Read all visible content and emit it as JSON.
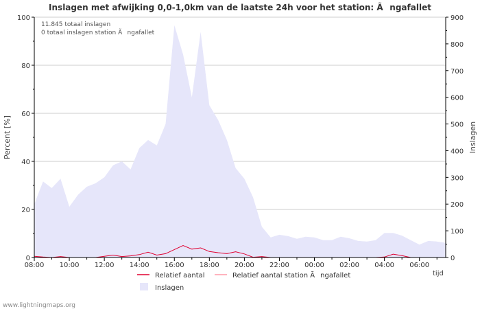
{
  "chart_data": {
    "type": "area",
    "title": "Inslagen met afwijking 0,0-1,0km van de laatste 24h voor het station: Ãngafallet",
    "info_lines": [
      "11.845 totaal inslagen",
      "0 totaal inslagen station Ãngafallet"
    ],
    "ylabel_left": "Percent   [%]",
    "ylabel_right": "Inslagen",
    "xlabel": "tijd",
    "ylim_left": [
      0,
      100
    ],
    "ylim_right": [
      0,
      900
    ],
    "yticks_left": [
      "0",
      "20",
      "40",
      "60",
      "80",
      "100"
    ],
    "yticks_right": [
      "0",
      "100",
      "200",
      "300",
      "400",
      "500",
      "600",
      "700",
      "800",
      "900"
    ],
    "x_range_hours": [
      8.0,
      31.5
    ],
    "x_ticks": [
      {
        "t": 8,
        "label": "08:00"
      },
      {
        "t": 10,
        "label": "10:00"
      },
      {
        "t": 12,
        "label": "12:00"
      },
      {
        "t": 14,
        "label": "14:00"
      },
      {
        "t": 16,
        "label": "16:00"
      },
      {
        "t": 18,
        "label": "18:00"
      },
      {
        "t": 20,
        "label": "20:00"
      },
      {
        "t": 22,
        "label": "22:00"
      },
      {
        "t": 24,
        "label": "00:00"
      },
      {
        "t": 26,
        "label": "02:00"
      },
      {
        "t": 28,
        "label": "04:00"
      },
      {
        "t": 30,
        "label": "06:00"
      }
    ],
    "series": [
      {
        "name": "Inslagen",
        "axis": "right",
        "color": "#e6e6fa",
        "t": [
          8,
          8.5,
          9,
          9.5,
          10,
          10.5,
          11,
          11.5,
          12,
          12.5,
          13,
          13.5,
          14,
          14.5,
          15,
          15.5,
          16,
          16.5,
          17,
          17.5,
          18,
          18.5,
          19,
          19.5,
          20,
          20.5,
          21,
          21.5,
          22,
          22.5,
          23,
          23.5,
          24,
          24.5,
          25,
          25.5,
          26,
          26.5,
          27,
          27.5,
          28,
          28.5,
          29,
          29.5,
          30,
          30.5,
          31,
          31.5
        ],
        "values": [
          200,
          285,
          260,
          295,
          190,
          235,
          265,
          278,
          300,
          345,
          360,
          330,
          410,
          440,
          420,
          500,
          870,
          760,
          600,
          845,
          570,
          515,
          440,
          335,
          295,
          225,
          115,
          75,
          85,
          80,
          70,
          78,
          75,
          65,
          65,
          78,
          72,
          62,
          60,
          65,
          92,
          92,
          82,
          65,
          48,
          62,
          60,
          55
        ]
      },
      {
        "name": "Relatief aantal",
        "axis": "left",
        "color": "#e00030",
        "t": [
          8,
          8.5,
          9,
          9.5,
          10,
          10.5,
          11,
          11.5,
          12,
          12.5,
          13,
          13.5,
          14,
          14.5,
          15,
          15.5,
          16,
          16.5,
          17,
          17.5,
          18,
          18.5,
          19,
          19.5,
          20,
          20.5,
          21,
          21.5,
          22,
          22.5,
          23,
          23.5,
          24,
          24.5,
          25,
          25.5,
          26,
          26.5,
          27,
          27.5,
          28,
          28.5,
          29,
          29.5,
          30,
          30.5,
          31,
          31.5
        ],
        "values": [
          0.5,
          0.2,
          0,
          0.4,
          0,
          0,
          0,
          0,
          0.5,
          1,
          0.4,
          0.7,
          1.2,
          2.2,
          1,
          1.6,
          3.3,
          5,
          3.5,
          4,
          2.5,
          2,
          1.6,
          2.4,
          1.5,
          0.1,
          0.4,
          0,
          0,
          0,
          0,
          0,
          0,
          0,
          0,
          0,
          0,
          0,
          0,
          0,
          0.2,
          1.4,
          0.8,
          0,
          0,
          0,
          0,
          0
        ]
      },
      {
        "name": "Relatief aantal station Ãngafallet",
        "axis": "left",
        "color": "#ff9aa8",
        "t": [
          8,
          31.5
        ],
        "values": [
          0,
          0
        ]
      }
    ],
    "legend": [
      {
        "label": "Relatief aantal",
        "swatch": "line",
        "color": "#e00030"
      },
      {
        "label": "Relatief aantal station Ãngafallet",
        "swatch": "line",
        "color": "#ff9aa8"
      },
      {
        "label": "Inslagen",
        "swatch": "box",
        "color": "#e6e6fa"
      }
    ]
  },
  "footer": {
    "source": "www.lightningmaps.org"
  }
}
